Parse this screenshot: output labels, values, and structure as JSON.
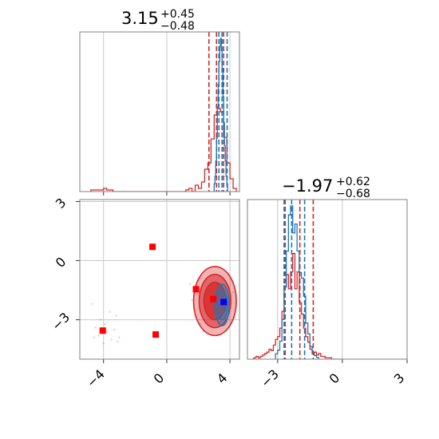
{
  "chart_data": {
    "type": "corner",
    "parameters": [
      {
        "title_value": "3.15",
        "title_plus": "+0.45",
        "title_minus": "−0.48"
      },
      {
        "title_value": "−1.97",
        "title_plus": "+0.62",
        "title_minus": "−0.68"
      }
    ],
    "xlim_param1": [
      -5.5,
      4.6
    ],
    "xlim_param2": [
      -4.4,
      3.0
    ],
    "ylim_param2": [
      -5.0,
      3.1
    ],
    "ticks_param1": [
      -4,
      0,
      4
    ],
    "tick_labels_param1": [
      "−4",
      "0",
      "4"
    ],
    "ticks_param2": [
      -3,
      0,
      3
    ],
    "tick_labels_param2": [
      "−3",
      "0",
      "3"
    ],
    "grid": true,
    "colors": {
      "red": "#d62728",
      "blue": "#1f77b4",
      "marker_blue": "#0000ff",
      "marker_red": "#ff0000"
    },
    "series": [
      {
        "color": "red",
        "hist1": {
          "bin_edges": [
            -4.8,
            -4.6,
            -4.4,
            -4.2,
            -4.0,
            -3.8,
            -3.6,
            -3.4,
            -3.2,
            -3.0,
            -2.8,
            -2.6,
            -2.4,
            -2.2,
            -2.0,
            -1.8,
            -1.6,
            -1.4,
            -1.2,
            -1.0,
            -0.8,
            -0.6,
            -0.4,
            -0.2,
            0.0,
            0.2,
            0.4,
            0.6,
            0.8,
            1.0,
            1.2,
            1.4,
            1.6,
            1.8,
            2.0,
            2.2,
            2.4,
            2.6,
            2.8,
            3.0,
            3.2,
            3.4,
            3.6,
            3.8,
            4.0,
            4.2,
            4.4
          ],
          "density": [
            0.01,
            0.01,
            0.01,
            0.01,
            0.02,
            0.01,
            0.01,
            0.0,
            0.0,
            0.0,
            0.0,
            0.0,
            0.0,
            0.0,
            0.0,
            0.0,
            0.0,
            0.0,
            0.0,
            0.0,
            0.0,
            0.0,
            0.0,
            0.0,
            0.0,
            0.0,
            0.0,
            0.0,
            0.0,
            0.0,
            0.01,
            0.02,
            0.0,
            0.04,
            0.02,
            0.06,
            0.14,
            0.18,
            0.33,
            0.48,
            0.52,
            0.5,
            0.34,
            0.18,
            0.08,
            0.02
          ]
        },
        "hist2": {
          "bin_edges": [
            -4.2,
            -4.1,
            -4.0,
            -3.9,
            -3.8,
            -3.7,
            -3.6,
            -3.5,
            -3.4,
            -3.3,
            -3.2,
            -3.1,
            -3.0,
            -2.9,
            -2.8,
            -2.7,
            -2.6,
            -2.5,
            -2.4,
            -2.3,
            -2.2,
            -2.1,
            -2.0,
            -1.9,
            -1.8,
            -1.7,
            -1.6,
            -1.5,
            -1.4,
            -1.3,
            -1.2,
            -1.1,
            -1.0,
            -0.9,
            -0.8,
            -0.7,
            -0.6,
            -0.5,
            -0.4,
            -0.3,
            -0.2,
            -0.1,
            0.0
          ],
          "density": [
            0.0,
            0.01,
            0.02,
            0.01,
            0.02,
            0.03,
            0.04,
            0.05,
            0.07,
            0.06,
            0.1,
            0.14,
            0.16,
            0.22,
            0.34,
            0.52,
            0.6,
            0.5,
            0.62,
            0.75,
            0.5,
            0.62,
            0.4,
            0.32,
            0.22,
            0.16,
            0.12,
            0.07,
            0.04,
            0.05,
            0.03,
            0.04,
            0.02,
            0.02,
            0.01,
            0.01,
            0.01,
            0.0,
            0.0,
            0.0,
            0.0,
            0.0
          ]
        },
        "quantile_lines_param1": [
          2.67,
          3.15,
          3.6
        ],
        "quantile_lines_param2": [
          -2.65,
          -1.97,
          -1.35
        ],
        "contours": [
          {
            "center": [
              3.05,
              -2.05
            ],
            "rx": 1.35,
            "ry": 1.75
          },
          {
            "center": [
              3.05,
              -2.05
            ],
            "rx": 1.0,
            "ry": 1.35
          },
          {
            "center": [
              3.05,
              -2.05
            ],
            "rx": 0.7,
            "ry": 0.95
          }
        ]
      },
      {
        "color": "blue",
        "hist1": {
          "bin_edges": [
            3.0,
            3.05,
            3.1,
            3.15,
            3.2,
            3.25,
            3.3,
            3.35,
            3.4,
            3.45,
            3.5,
            3.55,
            3.6,
            3.65,
            3.7,
            3.75,
            3.8,
            3.85,
            3.9
          ],
          "density": [
            0.05,
            0.1,
            0.2,
            0.35,
            0.55,
            0.7,
            0.85,
            0.95,
            1.0,
            0.92,
            0.8,
            0.62,
            0.45,
            0.3,
            0.2,
            0.1,
            0.05,
            0.0
          ]
        },
        "hist2": {
          "bin_edges": [
            -3.1,
            -3.0,
            -2.9,
            -2.8,
            -2.7,
            -2.6,
            -2.5,
            -2.4,
            -2.3,
            -2.2,
            -2.1,
            -2.0,
            -1.9,
            -1.8,
            -1.7,
            -1.6,
            -1.5,
            -1.4,
            -1.3,
            -1.2,
            -1.1
          ],
          "density": [
            0.03,
            0.05,
            0.1,
            0.22,
            0.4,
            0.6,
            0.8,
            0.85,
            0.7,
            0.75,
            0.6,
            0.48,
            0.45,
            0.35,
            0.2,
            0.14,
            0.07,
            0.03,
            0.02,
            0.01
          ]
        },
        "quantile_lines_param1": [
          3.3,
          3.5,
          3.82
        ],
        "quantile_lines_param2": [
          -2.7,
          -2.35,
          -1.75
        ],
        "contours": [
          {
            "center": [
              3.5,
              -2.25
            ],
            "rx": 0.45,
            "ry": 1.05
          },
          {
            "center": [
              3.5,
              -2.25
            ],
            "rx": 0.33,
            "ry": 0.75
          }
        ]
      }
    ],
    "scatter_points_red": [
      [
        -4.7,
        -2.2
      ],
      [
        -4.5,
        -3.4
      ],
      [
        -4.2,
        -3.0
      ],
      [
        -3.8,
        -3.6
      ],
      [
        -3.5,
        -4.0
      ],
      [
        -3.2,
        -2.8
      ],
      [
        -3.0,
        -3.9
      ],
      [
        -4.0,
        -4.2
      ],
      [
        -3.6,
        -2.6
      ],
      [
        -4.3,
        -3.8
      ],
      [
        -3.9,
        -3.2
      ],
      [
        -3.3,
        -3.5
      ],
      [
        -4.6,
        -3.9
      ],
      [
        -3.1,
        -4.1
      ],
      [
        1.5,
        -1.2
      ],
      [
        1.8,
        -2.8
      ],
      [
        2.0,
        -1.0
      ],
      [
        2.1,
        -3.2
      ],
      [
        1.6,
        -2.0
      ],
      [
        2.3,
        -3.6
      ],
      [
        1.9,
        -1.7
      ],
      [
        4.2,
        -1.6
      ],
      [
        4.3,
        -2.9
      ],
      [
        2.2,
        -0.9
      ],
      [
        4.4,
        -2.3
      ]
    ],
    "reference_markers_red": [
      [
        -0.9,
        0.7
      ],
      [
        -0.7,
        -3.75
      ],
      [
        -4.05,
        -3.55
      ],
      [
        1.85,
        -1.45
      ],
      [
        2.95,
        -1.95
      ]
    ],
    "reference_markers_blue": [
      [
        3.6,
        -2.1
      ]
    ]
  }
}
